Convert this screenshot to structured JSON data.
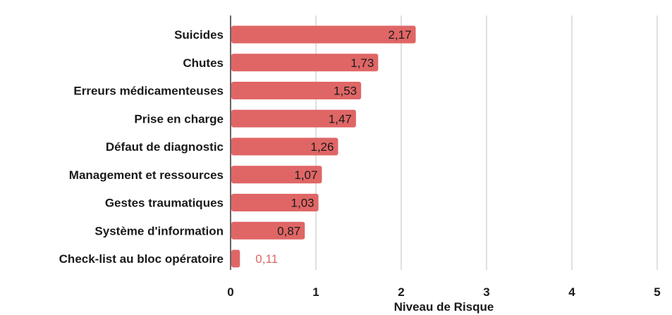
{
  "chart_data": {
    "type": "bar",
    "orientation": "horizontal",
    "categories": [
      "Suicides",
      "Chutes",
      "Erreurs médicamenteuses",
      "Prise en charge",
      "Défaut de diagnostic",
      "Management et ressources",
      "Gestes traumatiques",
      "Système d'information",
      "Check-list au bloc opératoire"
    ],
    "values": [
      2.17,
      1.73,
      1.53,
      1.47,
      1.26,
      1.07,
      1.03,
      0.87,
      0.11
    ],
    "value_labels": [
      "2,17",
      "1,73",
      "1,53",
      "1,47",
      "1,26",
      "1,07",
      "1,03",
      "0,87",
      "0,11"
    ],
    "xlabel": "Niveau de Risque",
    "xlim": [
      0,
      5
    ],
    "xticks": [
      "0",
      "1",
      "2",
      "3",
      "4",
      "5"
    ],
    "grid": true,
    "bar_color": "#e06666",
    "label_inside_color": "#1a1a1a",
    "label_outside_color": "#e06666"
  }
}
